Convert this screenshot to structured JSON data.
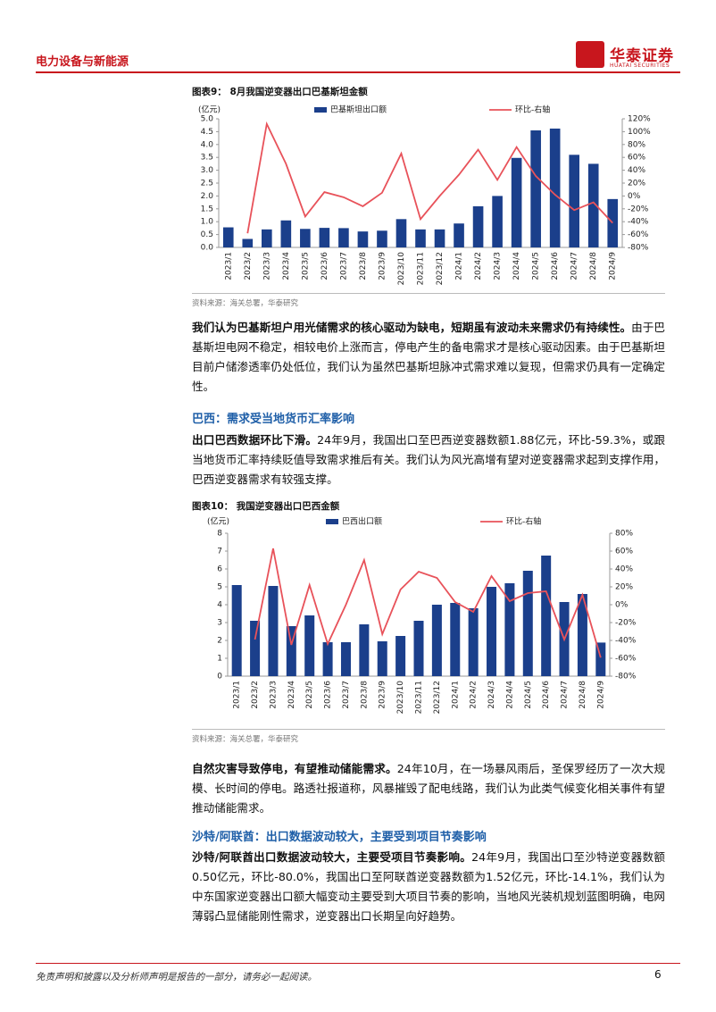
{
  "header": {
    "section": "电力设备与新能源",
    "logo": "华泰证券",
    "logo_en": "HUATAI SECURITIES"
  },
  "chart_data": [
    {
      "type": "bar",
      "title": "图表9：  8月我国逆变器出口巴基斯坦金额",
      "y_label": "(亿元)",
      "source": "资料来源：海关总署，华泰研究",
      "categories": [
        "2023/1",
        "2023/2",
        "2023/3",
        "2023/4",
        "2023/5",
        "2023/6",
        "2023/7",
        "2023/8",
        "2023/9",
        "2023/10",
        "2023/11",
        "2023/12",
        "2024/1",
        "2024/2",
        "2024/3",
        "2024/4",
        "2024/5",
        "2024/6",
        "2024/7",
        "2024/8",
        "2024/9"
      ],
      "series": [
        {
          "name": "巴基斯坦出口额",
          "color": "#1b3f8b",
          "values": [
            0.78,
            0.33,
            0.7,
            1.05,
            0.72,
            0.76,
            0.75,
            0.62,
            0.65,
            1.1,
            0.7,
            0.7,
            0.93,
            1.6,
            2.0,
            3.48,
            4.55,
            4.62,
            3.6,
            3.25,
            1.88
          ]
        },
        {
          "name": "环比-右轴",
          "color": "#e8525a",
          "type": "line",
          "axis": "y2",
          "values": [
            null,
            -58,
            112,
            50,
            -32,
            6,
            -2,
            -16,
            5,
            66,
            -36,
            0,
            33,
            72,
            25,
            76,
            31,
            2,
            -22,
            -10,
            -42
          ]
        }
      ],
      "ylim": [
        0,
        5
      ],
      "yticks": [
        {
          "value": 0,
          "label": "0.0"
        },
        {
          "value": 0.5,
          "label": "0.5"
        },
        {
          "value": 1,
          "label": "1.0"
        },
        {
          "value": 1.5,
          "label": "1.5"
        },
        {
          "value": 2,
          "label": "2.0"
        },
        {
          "value": 2.5,
          "label": "2.5"
        },
        {
          "value": 3,
          "label": "3.0"
        },
        {
          "value": 3.5,
          "label": "3.5"
        },
        {
          "value": 4,
          "label": "4.0"
        },
        {
          "value": 4.5,
          "label": "4.5"
        },
        {
          "value": 5,
          "label": "5.0"
        }
      ],
      "y2lim": [
        -80,
        120
      ],
      "y2ticks": [
        {
          "value": -80,
          "label": "-80%"
        },
        {
          "value": -60,
          "label": "-60%"
        },
        {
          "value": -40,
          "label": "-40%"
        },
        {
          "value": -20,
          "label": "-20%"
        },
        {
          "value": 0,
          "label": "0%"
        },
        {
          "value": 20,
          "label": "20%"
        },
        {
          "value": 40,
          "label": "40%"
        },
        {
          "value": 60,
          "label": "60%"
        },
        {
          "value": 80,
          "label": "80%"
        },
        {
          "value": 100,
          "label": "100%"
        },
        {
          "value": 120,
          "label": "120%"
        }
      ]
    },
    {
      "type": "bar",
      "title": "图表10：  我国逆变器出口巴西金额",
      "y_label": "(亿元)",
      "source": "资料来源：海关总署，华泰研究",
      "categories": [
        "2023/1",
        "2023/2",
        "2023/3",
        "2023/4",
        "2023/5",
        "2023/6",
        "2023/7",
        "2023/8",
        "2023/9",
        "2023/10",
        "2023/11",
        "2023/12",
        "2024/1",
        "2024/2",
        "2024/3",
        "2024/4",
        "2024/5",
        "2024/6",
        "2024/7",
        "2024/8",
        "2024/9"
      ],
      "series": [
        {
          "name": "巴西出口额",
          "color": "#1b3f8b",
          "values": [
            5.1,
            3.1,
            5.05,
            2.8,
            3.4,
            1.9,
            1.9,
            2.9,
            1.95,
            2.25,
            3.1,
            4.0,
            4.1,
            3.8,
            5.0,
            5.2,
            5.9,
            6.75,
            4.15,
            4.6,
            1.88
          ]
        },
        {
          "name": "环比-右轴",
          "color": "#e8525a",
          "type": "line",
          "axis": "y2",
          "values": [
            null,
            -39,
            63,
            -45,
            22,
            -44,
            0,
            50,
            -33,
            17,
            37,
            30,
            3,
            -8,
            32,
            4,
            13,
            15,
            -39,
            11,
            -59.3
          ]
        }
      ],
      "ylim": [
        0,
        8
      ],
      "yticks": [
        0,
        1,
        2,
        3,
        4,
        5,
        6,
        7,
        8
      ],
      "y2lim": [
        -80,
        80
      ],
      "y2ticks": [
        {
          "value": -80,
          "label": "-80%"
        },
        {
          "value": -60,
          "label": "-60%"
        },
        {
          "value": -40,
          "label": "-40%"
        },
        {
          "value": -20,
          "label": "-20%"
        },
        {
          "value": 0,
          "label": "0%"
        },
        {
          "value": 20,
          "label": "20%"
        },
        {
          "value": 40,
          "label": "40%"
        },
        {
          "value": 60,
          "label": "60%"
        },
        {
          "value": 80,
          "label": "80%"
        }
      ]
    }
  ],
  "paragraphs": [
    {
      "bold": "我们认为巴基斯坦户用光储需求的核心驱动为缺电，短期虽有波动未来需求仍有持续性。",
      "text": "由于巴基斯坦电网不稳定，相较电价上涨而言，停电产生的备电需求才是核心驱动因素。由于巴基斯坦目前户储渗透率仍处低位，我们认为虽然巴基斯坦脉冲式需求难以复现，但需求仍具有一定确定性。"
    },
    {
      "bold": "出口巴西数据环比下滑。",
      "text": "24年9月，我国出口至巴西逆变器数额1.88亿元，环比-59.3%，或跟当地货币汇率持续贬值导致需求推后有关。我们认为风光高增有望对逆变器需求起到支撑作用，巴西逆变器需求有较强支撑。"
    },
    {
      "bold": "自然灾害导致停电，有望推动储能需求。",
      "text": "24年10月，在一场暴风雨后，圣保罗经历了一次大规模、长时间的停电。路透社报道称，风暴摧毁了配电线路，我们认为此类气候变化相关事件有望推动储能需求。"
    },
    {
      "bold": "沙特/阿联酋出口数据波动较大，主要受项目节奏影响。",
      "text": "24年9月，我国出口至沙特逆变器数额0.50亿元，环比-80.0%，我国出口至阿联酋逆变器数额为1.52亿元，环比-14.1%，我们认为中东国家逆变器出口额大幅变动主要受到大项目节奏的影响，当地风光装机规划蓝图明确，电网薄弱凸显储能刚性需求，逆变器出口长期呈向好趋势。"
    }
  ],
  "headings": [
    "巴西：需求受当地货币汇率影响",
    "沙特/阿联酋：出口数据波动较大，主要受到项目节奏影响"
  ],
  "footer": {
    "disclaimer": "免责声明和披露以及分析师声明是报告的一部分，请务必一起阅读。",
    "page": 6
  }
}
